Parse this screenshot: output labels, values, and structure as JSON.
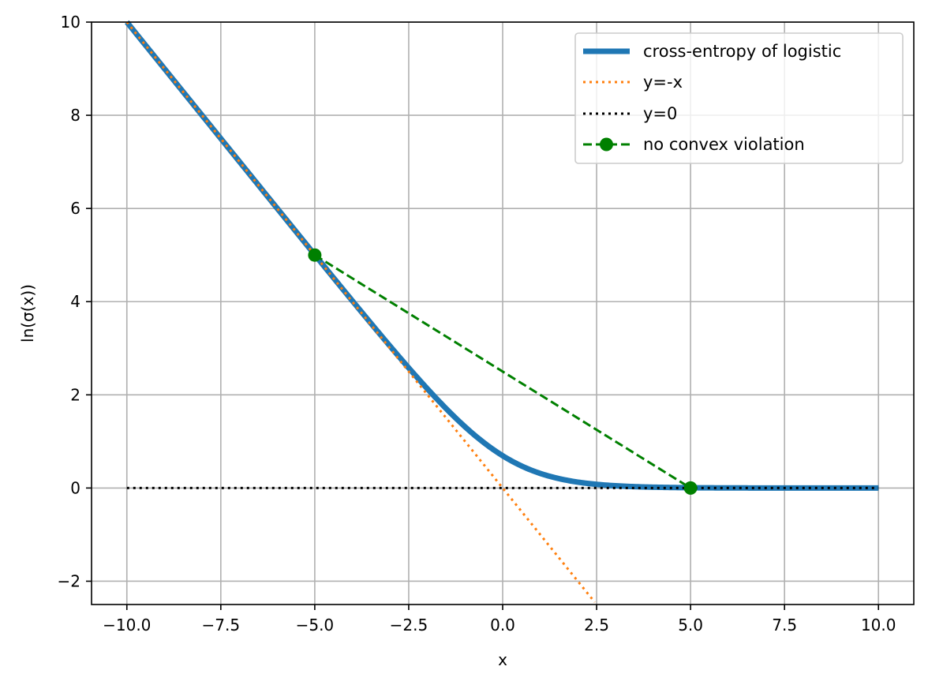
{
  "chart_data": {
    "type": "line",
    "title": "",
    "xlabel": "x",
    "ylabel": "ln(σ(x))",
    "xlim": [
      -10.94,
      10.94
    ],
    "ylim": [
      -2.5,
      10
    ],
    "xticks": [
      -10.0,
      -7.5,
      -5.0,
      -2.5,
      0.0,
      2.5,
      5.0,
      7.5,
      10.0
    ],
    "xtick_labels": [
      "−10.0",
      "−7.5",
      "−5.0",
      "−2.5",
      "0.0",
      "2.5",
      "5.0",
      "7.5",
      "10.0"
    ],
    "yticks": [
      -2,
      0,
      2,
      4,
      6,
      8,
      10
    ],
    "ytick_labels": [
      "−2",
      "0",
      "2",
      "4",
      "6",
      "8",
      "10"
    ],
    "grid": true,
    "legend_position": "top-right",
    "series": [
      {
        "name": "cross-entropy of logistic",
        "color": "#1f77b4",
        "style": "solid",
        "x": [
          -10,
          -9,
          -8,
          -7,
          -6,
          -5,
          -4.5,
          -4,
          -3.5,
          -3,
          -2.5,
          -2,
          -1.5,
          -1,
          -0.5,
          0,
          0.5,
          1,
          1.5,
          2,
          2.5,
          3,
          3.5,
          4,
          4.5,
          5,
          6,
          7,
          8,
          9,
          10
        ],
        "y": [
          10.0,
          9.0001,
          8.0003,
          7.0009,
          6.0025,
          5.0067,
          4.511,
          4.0181,
          3.5297,
          3.0486,
          2.5789,
          2.1269,
          1.7014,
          1.3133,
          0.9741,
          0.6931,
          0.4741,
          0.3133,
          0.2014,
          0.1269,
          0.0789,
          0.0486,
          0.0297,
          0.0181,
          0.011,
          0.0067,
          0.0025,
          0.0009,
          0.0003,
          0.0001,
          0.0
        ]
      },
      {
        "name": "y=-x",
        "color": "#ff7f0e",
        "style": "dotted",
        "x": [
          -10,
          2.45
        ],
        "y": [
          10,
          -2.45
        ]
      },
      {
        "name": "y=0",
        "color": "#000000",
        "style": "dotted",
        "x": [
          -10,
          10
        ],
        "y": [
          0,
          0
        ]
      },
      {
        "name": "no convex violation",
        "color": "#008000",
        "style": "dashed-marker",
        "x": [
          -5,
          5
        ],
        "y": [
          5,
          0
        ]
      }
    ]
  }
}
